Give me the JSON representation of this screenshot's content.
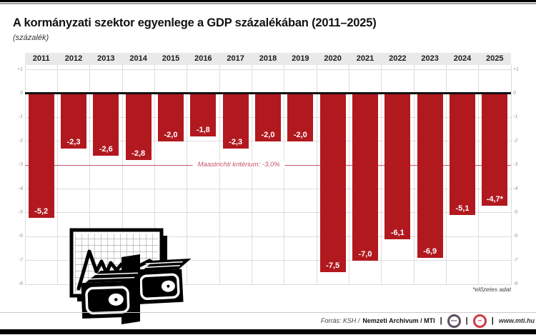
{
  "title": "A kormányzati szektor egyenlege a GDP százalékában (2011–2025)",
  "subtitle": "(százalék)",
  "footnote": "*előzetes adat",
  "colors": {
    "bar": "#b2191f",
    "reference": "#c45568",
    "grid": "#dcdcdc",
    "band_bg": "#e9e9e9",
    "axis_text": "#999999",
    "baseline": "#111111"
  },
  "chart_data": {
    "type": "bar",
    "title": "A kormányzati szektor egyenlege a GDP százalékában (2011–2025)",
    "ylabel": "(százalék)",
    "categories": [
      "2011",
      "2012",
      "2013",
      "2014",
      "2015",
      "2016",
      "2017",
      "2018",
      "2019",
      "2020",
      "2021",
      "2022",
      "2023",
      "2024",
      "2025"
    ],
    "values": [
      -5.2,
      -2.3,
      -2.6,
      -2.8,
      -2.0,
      -1.8,
      -2.3,
      -2.0,
      -2.0,
      -7.5,
      -7.0,
      -6.1,
      -6.9,
      -5.1,
      -4.7
    ],
    "bar_labels": [
      "-5,2",
      "-2,3",
      "-2,6",
      "-2,8",
      "-2,0",
      "-1,8",
      "-2,3",
      "-2,0",
      "-2,0",
      "-7,5",
      "-7,0",
      "-6,1",
      "-6,9",
      "-5,1",
      "-4,7*"
    ],
    "ylim": [
      -8,
      1
    ],
    "yticks": [
      {
        "label": "+1",
        "value": 1
      },
      {
        "label": "0",
        "value": 0
      },
      {
        "label": "-1",
        "value": -1
      },
      {
        "label": "-2",
        "value": -2
      },
      {
        "label": "-3",
        "value": -3
      },
      {
        "label": "-4",
        "value": -4
      },
      {
        "label": "-5",
        "value": -5
      },
      {
        "label": "-6",
        "value": -6
      },
      {
        "label": "-7",
        "value": -7
      },
      {
        "label": "-8",
        "value": -8
      }
    ],
    "reference_line": {
      "value": -3.0,
      "label": "Maastrichti kritérium: -3,0%"
    },
    "grid": true,
    "legend": "none"
  },
  "footer": {
    "source_italic": "Forrás: KSH /",
    "source_bold": "Nemzeti Archivum / MTI",
    "separator": "|",
    "logo_mtva": "mtva",
    "logo_mti": "mti",
    "url": "www.mti.hu"
  }
}
